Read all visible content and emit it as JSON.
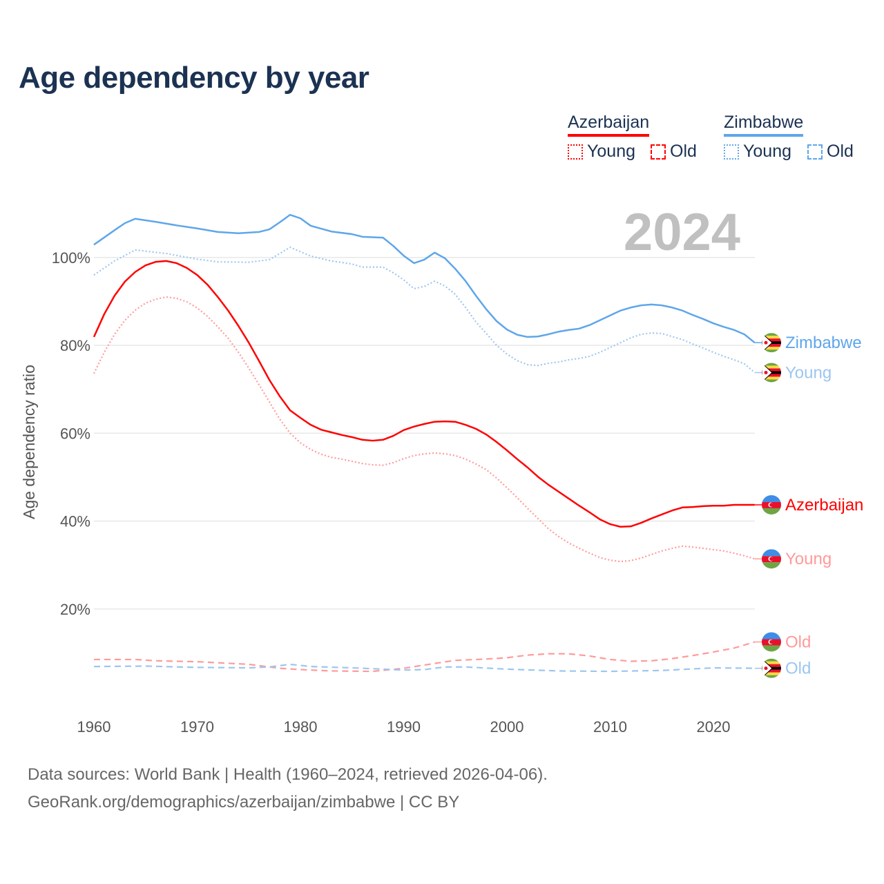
{
  "title": "Age dependency by year",
  "legend": {
    "countries": [
      {
        "name": "Azerbaijan",
        "color": "#ff0000",
        "young_label": "Young",
        "old_label": "Old"
      },
      {
        "name": "Zimbabwe",
        "color": "#5ea6ea",
        "young_label": "Young",
        "old_label": "Old"
      }
    ]
  },
  "year_watermark": "2024",
  "footer": {
    "line1": "Data sources: World Bank | Health (1960–2024, retrieved 2026-04-06).",
    "line2": "GeoRank.org/demographics/azerbaijan/zimbabwe | CC BY"
  },
  "chart_data": {
    "type": "line",
    "title": "Age dependency by year",
    "xlabel": "",
    "ylabel": "Age dependency ratio",
    "xlim": [
      1960,
      2024
    ],
    "ylim": [
      0,
      110
    ],
    "xticks": [
      1960,
      1970,
      1980,
      1990,
      2000,
      2010,
      2020
    ],
    "xtick_labels": [
      "1960",
      "1970",
      "1980",
      "1990",
      "2000",
      "2010",
      "2020"
    ],
    "yticks": [
      20,
      40,
      60,
      80,
      100
    ],
    "ytick_labels": [
      "20%",
      "40%",
      "60%",
      "80%",
      "100%"
    ],
    "grid": true,
    "series": [
      {
        "name": "Zimbabwe",
        "end_label": "Zimbabwe",
        "country": "zimbabwe",
        "color": "#5ea6ea",
        "style": "solid",
        "points": [
          [
            1960,
            102.9
          ],
          [
            1962,
            106.2
          ],
          [
            1963,
            107.8
          ],
          [
            1964,
            108.8
          ],
          [
            1966,
            108.1
          ],
          [
            1968,
            107.3
          ],
          [
            1970,
            106.6
          ],
          [
            1972,
            105.8
          ],
          [
            1974,
            105.5
          ],
          [
            1976,
            105.8
          ],
          [
            1977,
            106.4
          ],
          [
            1978,
            108
          ],
          [
            1979,
            109.7
          ],
          [
            1980,
            108.9
          ],
          [
            1981,
            107.2
          ],
          [
            1983,
            105.9
          ],
          [
            1985,
            105.3
          ],
          [
            1986,
            104.7
          ],
          [
            1988,
            104.5
          ],
          [
            1989,
            102.6
          ],
          [
            1990,
            100.4
          ],
          [
            1991,
            98.7
          ],
          [
            1992,
            99.5
          ],
          [
            1993,
            101.1
          ],
          [
            1994,
            99.8
          ],
          [
            1995,
            97.4
          ],
          [
            1996,
            94.6
          ],
          [
            1997,
            91.3
          ],
          [
            1998,
            88.2
          ],
          [
            1999,
            85.5
          ],
          [
            2000,
            83.6
          ],
          [
            2001,
            82.4
          ],
          [
            2002,
            81.9
          ],
          [
            2003,
            82
          ],
          [
            2004,
            82.5
          ],
          [
            2005,
            83.1
          ],
          [
            2006,
            83.5
          ],
          [
            2007,
            83.8
          ],
          [
            2008,
            84.6
          ],
          [
            2009,
            85.7
          ],
          [
            2010,
            86.8
          ],
          [
            2011,
            87.9
          ],
          [
            2012,
            88.6
          ],
          [
            2013,
            89.1
          ],
          [
            2014,
            89.3
          ],
          [
            2015,
            89.1
          ],
          [
            2016,
            88.6
          ],
          [
            2017,
            87.9
          ],
          [
            2018,
            86.9
          ],
          [
            2019,
            86
          ],
          [
            2020,
            85
          ],
          [
            2021,
            84.2
          ],
          [
            2022,
            83.5
          ],
          [
            2023,
            82.5
          ],
          [
            2024,
            80.6
          ]
        ]
      },
      {
        "name": "Zimbabwe Young",
        "end_label": "Young",
        "country": "zimbabwe",
        "color": "#9cc6f0",
        "style": "dotted",
        "points": [
          [
            1960,
            96
          ],
          [
            1962,
            99.2
          ],
          [
            1964,
            101.7
          ],
          [
            1967,
            100.9
          ],
          [
            1970,
            99.6
          ],
          [
            1972,
            99
          ],
          [
            1975,
            98.9
          ],
          [
            1977,
            99.5
          ],
          [
            1979,
            102.3
          ],
          [
            1981,
            100.3
          ],
          [
            1983,
            99.2
          ],
          [
            1985,
            98.5
          ],
          [
            1986,
            97.8
          ],
          [
            1988,
            97.8
          ],
          [
            1989,
            96.5
          ],
          [
            1990,
            94.9
          ],
          [
            1991,
            92.9
          ],
          [
            1992,
            93.4
          ],
          [
            1993,
            94.6
          ],
          [
            1994,
            93.5
          ],
          [
            1995,
            91.6
          ],
          [
            1996,
            88.6
          ],
          [
            1997,
            85.3
          ],
          [
            1998,
            82.7
          ],
          [
            1999,
            80
          ],
          [
            2000,
            78
          ],
          [
            2001,
            76.5
          ],
          [
            2002,
            75.6
          ],
          [
            2003,
            75.4
          ],
          [
            2004,
            75.9
          ],
          [
            2005,
            76.2
          ],
          [
            2006,
            76.7
          ],
          [
            2007,
            77
          ],
          [
            2008,
            77.5
          ],
          [
            2009,
            78.4
          ],
          [
            2010,
            79.5
          ],
          [
            2011,
            80.6
          ],
          [
            2012,
            81.7
          ],
          [
            2013,
            82.5
          ],
          [
            2014,
            82.8
          ],
          [
            2015,
            82.7
          ],
          [
            2016,
            82
          ],
          [
            2017,
            81.3
          ],
          [
            2018,
            80.3
          ],
          [
            2019,
            79.4
          ],
          [
            2020,
            78.4
          ],
          [
            2021,
            77.5
          ],
          [
            2022,
            76.7
          ],
          [
            2023,
            75.8
          ],
          [
            2024,
            73.8
          ]
        ]
      },
      {
        "name": "Azerbaijan",
        "end_label": "Azerbaijan",
        "country": "azerbaijan",
        "color": "#ff0000",
        "style": "solid",
        "points": [
          [
            1960,
            81.9
          ],
          [
            1961,
            87.1
          ],
          [
            1962,
            91.3
          ],
          [
            1963,
            94.5
          ],
          [
            1964,
            96.7
          ],
          [
            1965,
            98.2
          ],
          [
            1966,
            99
          ],
          [
            1967,
            99.2
          ],
          [
            1968,
            98.7
          ],
          [
            1969,
            97.6
          ],
          [
            1970,
            96
          ],
          [
            1971,
            93.8
          ],
          [
            1972,
            91
          ],
          [
            1973,
            87.9
          ],
          [
            1974,
            84.4
          ],
          [
            1975,
            80.6
          ],
          [
            1976,
            76.4
          ],
          [
            1977,
            72.1
          ],
          [
            1978,
            68.4
          ],
          [
            1979,
            65.2
          ],
          [
            1980,
            63.5
          ],
          [
            1981,
            61.9
          ],
          [
            1982,
            60.8
          ],
          [
            1983,
            60.2
          ],
          [
            1984,
            59.6
          ],
          [
            1985,
            59.1
          ],
          [
            1986,
            58.5
          ],
          [
            1987,
            58.3
          ],
          [
            1988,
            58.5
          ],
          [
            1989,
            59.4
          ],
          [
            1990,
            60.7
          ],
          [
            1991,
            61.5
          ],
          [
            1992,
            62.1
          ],
          [
            1993,
            62.6
          ],
          [
            1994,
            62.7
          ],
          [
            1995,
            62.6
          ],
          [
            1996,
            61.9
          ],
          [
            1997,
            61
          ],
          [
            1998,
            59.7
          ],
          [
            1999,
            58
          ],
          [
            2000,
            56.1
          ],
          [
            2001,
            54.1
          ],
          [
            2002,
            52.2
          ],
          [
            2003,
            50.1
          ],
          [
            2004,
            48.3
          ],
          [
            2005,
            46.7
          ],
          [
            2006,
            45.1
          ],
          [
            2007,
            43.5
          ],
          [
            2008,
            42
          ],
          [
            2009,
            40.4
          ],
          [
            2010,
            39.3
          ],
          [
            2011,
            38.7
          ],
          [
            2012,
            38.8
          ],
          [
            2013,
            39.6
          ],
          [
            2014,
            40.6
          ],
          [
            2015,
            41.5
          ],
          [
            2016,
            42.4
          ],
          [
            2017,
            43.1
          ],
          [
            2018,
            43.2
          ],
          [
            2019,
            43.4
          ],
          [
            2020,
            43.5
          ],
          [
            2021,
            43.5
          ],
          [
            2022,
            43.7
          ],
          [
            2023,
            43.7
          ],
          [
            2024,
            43.7
          ]
        ]
      },
      {
        "name": "Azerbaijan Young",
        "end_label": "Young",
        "country": "azerbaijan",
        "color": "#ff9a9a",
        "style": "dotted",
        "points": [
          [
            1960,
            73.6
          ],
          [
            1961,
            78.4
          ],
          [
            1962,
            82.5
          ],
          [
            1963,
            85.7
          ],
          [
            1964,
            88
          ],
          [
            1965,
            89.6
          ],
          [
            1966,
            90.5
          ],
          [
            1967,
            91
          ],
          [
            1968,
            90.7
          ],
          [
            1969,
            89.9
          ],
          [
            1970,
            88.5
          ],
          [
            1971,
            86.6
          ],
          [
            1972,
            84.2
          ],
          [
            1973,
            81.6
          ],
          [
            1974,
            78.4
          ],
          [
            1975,
            74.8
          ],
          [
            1976,
            71
          ],
          [
            1977,
            67.1
          ],
          [
            1978,
            63.2
          ],
          [
            1979,
            60
          ],
          [
            1980,
            57.8
          ],
          [
            1981,
            56.3
          ],
          [
            1982,
            55.2
          ],
          [
            1983,
            54.5
          ],
          [
            1984,
            54.1
          ],
          [
            1985,
            53.6
          ],
          [
            1986,
            53.1
          ],
          [
            1987,
            52.8
          ],
          [
            1988,
            52.7
          ],
          [
            1989,
            53.3
          ],
          [
            1990,
            54.2
          ],
          [
            1991,
            54.9
          ],
          [
            1992,
            55.3
          ],
          [
            1993,
            55.5
          ],
          [
            1994,
            55.3
          ],
          [
            1995,
            54.9
          ],
          [
            1996,
            54.1
          ],
          [
            1997,
            53
          ],
          [
            1998,
            51.7
          ],
          [
            1999,
            49.8
          ],
          [
            2000,
            47.6
          ],
          [
            2001,
            45.3
          ],
          [
            2002,
            42.9
          ],
          [
            2003,
            40.6
          ],
          [
            2004,
            38.3
          ],
          [
            2005,
            36.5
          ],
          [
            2006,
            35
          ],
          [
            2007,
            33.8
          ],
          [
            2008,
            32.7
          ],
          [
            2009,
            31.7
          ],
          [
            2010,
            31.1
          ],
          [
            2011,
            30.8
          ],
          [
            2012,
            31
          ],
          [
            2013,
            31.6
          ],
          [
            2014,
            32.4
          ],
          [
            2015,
            33.2
          ],
          [
            2016,
            33.8
          ],
          [
            2017,
            34.3
          ],
          [
            2018,
            34.1
          ],
          [
            2019,
            33.8
          ],
          [
            2020,
            33.5
          ],
          [
            2021,
            33.2
          ],
          [
            2022,
            32.7
          ],
          [
            2023,
            32.1
          ],
          [
            2024,
            31.4
          ]
        ]
      },
      {
        "name": "Azerbaijan Old",
        "end_label": "Old",
        "country": "azerbaijan",
        "color": "#ff9a9a",
        "style": "dashed",
        "points": [
          [
            1960,
            8.5
          ],
          [
            1964,
            8.5
          ],
          [
            1966,
            8.2
          ],
          [
            1970,
            8
          ],
          [
            1975,
            7.4
          ],
          [
            1978,
            6.5
          ],
          [
            1980,
            6.2
          ],
          [
            1983,
            5.9
          ],
          [
            1987,
            5.8
          ],
          [
            1990,
            6.5
          ],
          [
            1993,
            7.6
          ],
          [
            1995,
            8.3
          ],
          [
            1998,
            8.6
          ],
          [
            2000,
            8.9
          ],
          [
            2002,
            9.5
          ],
          [
            2004,
            9.8
          ],
          [
            2006,
            9.8
          ],
          [
            2008,
            9.3
          ],
          [
            2010,
            8.5
          ],
          [
            2012,
            8.1
          ],
          [
            2014,
            8.2
          ],
          [
            2016,
            8.7
          ],
          [
            2018,
            9.4
          ],
          [
            2020,
            10.2
          ],
          [
            2022,
            11.1
          ],
          [
            2024,
            12.5
          ]
        ]
      },
      {
        "name": "Zimbabwe Old",
        "end_label": "Old",
        "country": "zimbabwe",
        "color": "#9cc6f0",
        "style": "dashed",
        "points": [
          [
            1960,
            6.9
          ],
          [
            1965,
            7
          ],
          [
            1970,
            6.7
          ],
          [
            1975,
            6.6
          ],
          [
            1977,
            6.8
          ],
          [
            1979,
            7.4
          ],
          [
            1981,
            6.9
          ],
          [
            1985,
            6.6
          ],
          [
            1990,
            6.1
          ],
          [
            1992,
            6.2
          ],
          [
            1994,
            6.8
          ],
          [
            1996,
            6.8
          ],
          [
            2000,
            6.3
          ],
          [
            2005,
            5.9
          ],
          [
            2010,
            5.8
          ],
          [
            2015,
            6
          ],
          [
            2020,
            6.6
          ],
          [
            2024,
            6.5
          ]
        ]
      }
    ]
  }
}
